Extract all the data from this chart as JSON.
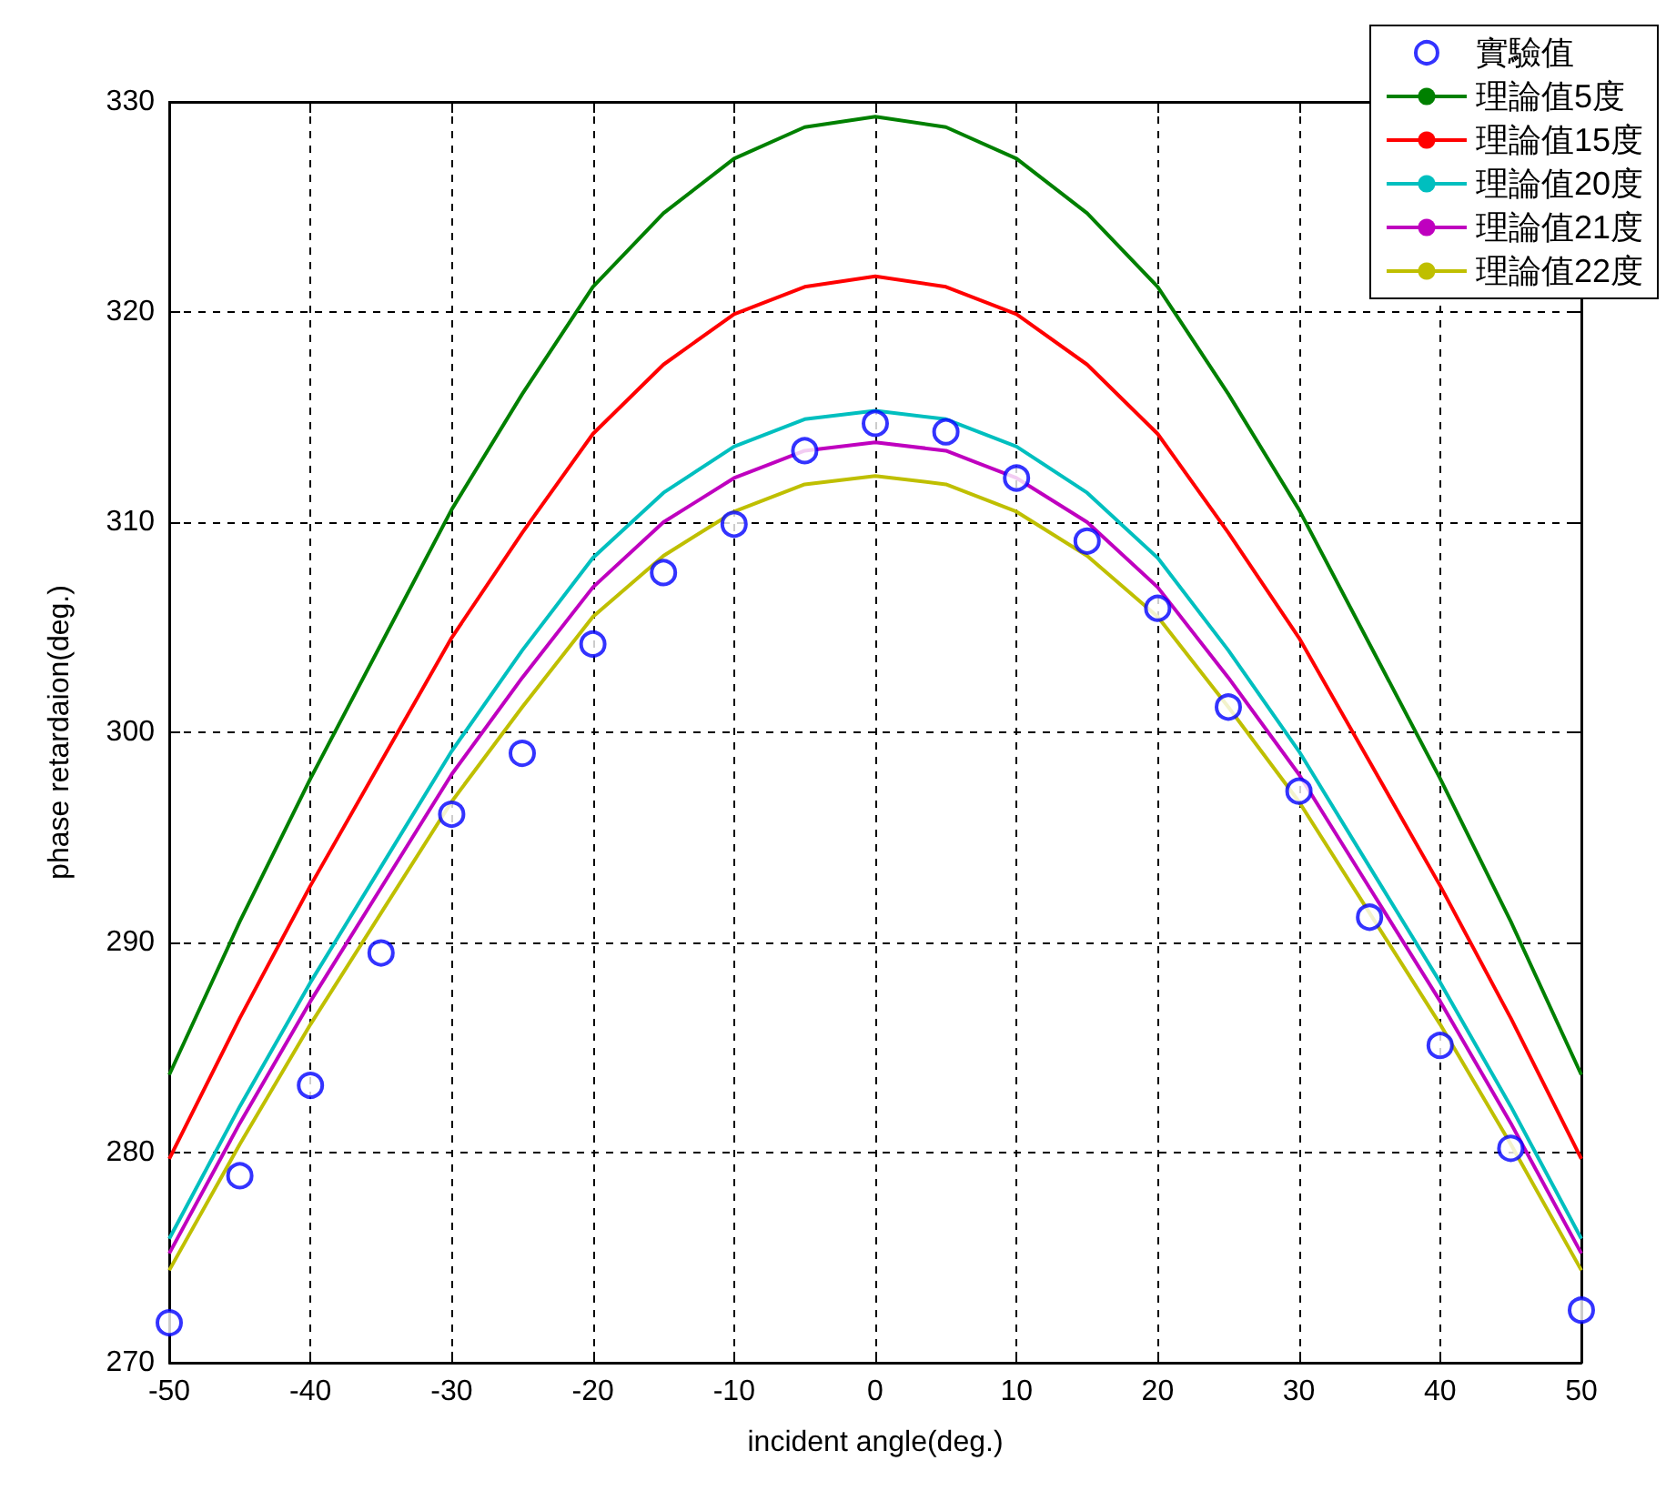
{
  "chart_data": {
    "type": "line",
    "xlabel": "incident angle(deg.)",
    "ylabel": "phase retardaion(deg.)",
    "x": [
      -50,
      -45,
      -40,
      -35,
      -30,
      -25,
      -20,
      -15,
      -10,
      -5,
      0,
      5,
      10,
      15,
      20,
      25,
      30,
      35,
      40,
      45,
      50
    ],
    "xlim": [
      -50,
      50
    ],
    "xticks": [
      -50,
      -40,
      -30,
      -20,
      -10,
      0,
      10,
      20,
      30,
      40,
      50
    ],
    "ylim": [
      270,
      330
    ],
    "yticks": [
      270,
      280,
      290,
      300,
      310,
      320,
      330
    ],
    "grid": true,
    "legend": "top right",
    "line_style": "solid",
    "series": [
      {
        "name": "實驗值",
        "type": "scatter",
        "marker": "circle",
        "color": "#0000ff",
        "values": [
          271.9,
          278.9,
          283.2,
          289.5,
          296.1,
          299.0,
          304.2,
          307.6,
          309.9,
          313.4,
          314.7,
          314.3,
          312.1,
          309.1,
          305.9,
          301.2,
          297.2,
          291.2,
          285.1,
          280.2,
          272.5
        ]
      },
      {
        "name": "理論值5度",
        "color": "#008000",
        "values": [
          283.7,
          291.0,
          297.8,
          304.2,
          310.6,
          316.1,
          321.2,
          324.7,
          327.3,
          328.8,
          329.3,
          328.8,
          327.3,
          324.7,
          321.2,
          316.1,
          310.6,
          304.2,
          297.8,
          291.0,
          283.7
        ]
      },
      {
        "name": "理論值15度",
        "color": "#ff0000",
        "values": [
          279.7,
          286.4,
          292.7,
          298.6,
          304.5,
          309.5,
          314.2,
          317.5,
          319.9,
          321.2,
          321.7,
          321.2,
          319.9,
          317.5,
          314.2,
          309.5,
          304.5,
          298.6,
          292.7,
          286.4,
          279.7
        ]
      },
      {
        "name": "理論值20度",
        "color": "#00bfbf",
        "values": [
          275.9,
          282.2,
          288.1,
          293.6,
          299.1,
          303.9,
          308.3,
          311.4,
          313.6,
          314.9,
          315.3,
          314.9,
          313.6,
          311.4,
          308.3,
          303.9,
          299.1,
          293.6,
          288.1,
          282.2,
          275.9
        ]
      },
      {
        "name": "理論值21度",
        "color": "#bf00bf",
        "values": [
          275.2,
          281.4,
          287.2,
          292.6,
          298.0,
          302.6,
          306.9,
          310.0,
          312.1,
          313.4,
          313.8,
          313.4,
          312.1,
          310.0,
          306.9,
          302.6,
          298.0,
          292.6,
          287.2,
          281.4,
          275.2
        ]
      },
      {
        "name": "理論值22度",
        "color": "#bfbf00",
        "values": [
          274.4,
          280.4,
          286.1,
          291.4,
          296.7,
          301.2,
          305.5,
          308.4,
          310.5,
          311.8,
          312.2,
          311.8,
          310.5,
          308.4,
          305.5,
          301.2,
          296.7,
          291.4,
          286.1,
          280.4,
          274.4
        ]
      }
    ]
  }
}
